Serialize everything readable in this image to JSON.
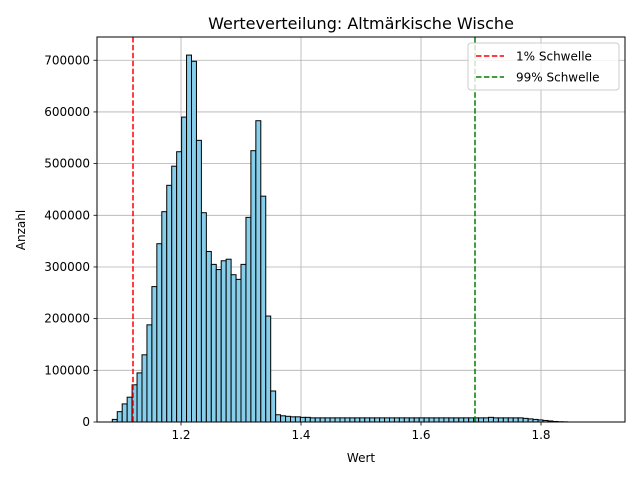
{
  "chart_data": {
    "type": "bar",
    "title": "Werteverteilung: Altmärkische Wische",
    "xlabel": "Wert",
    "ylabel": "Anzahl",
    "xlim": [
      1.06,
      1.94
    ],
    "ylim": [
      0,
      745000
    ],
    "xticks": [
      1.2,
      1.4,
      1.6,
      1.8
    ],
    "xtick_labels": [
      "1.2",
      "1.4",
      "1.6",
      "1.8"
    ],
    "yticks": [
      0,
      100000,
      200000,
      300000,
      400000,
      500000,
      600000,
      700000
    ],
    "ytick_labels": [
      "0",
      "100000",
      "200000",
      "300000",
      "400000",
      "500000",
      "600000",
      "700000"
    ],
    "grid": true,
    "legend_position": "top-right",
    "bar_color": "#87ceeb",
    "bar_edge_color": "#000000",
    "bin_start": 1.0855,
    "bin_width": 0.00825,
    "values": [
      5000,
      20000,
      35000,
      48000,
      72000,
      95000,
      130000,
      188000,
      262000,
      345000,
      407000,
      458000,
      495000,
      523000,
      590000,
      710000,
      698000,
      545000,
      405000,
      330000,
      305000,
      295000,
      312000,
      315000,
      285000,
      276000,
      305000,
      396000,
      525000,
      583000,
      437000,
      205000,
      60000,
      14000,
      12000,
      11000,
      10000,
      10000,
      9000,
      9000,
      8000,
      8000,
      8000,
      8000,
      8000,
      8000,
      8000,
      8000,
      8000,
      8000,
      8000,
      8000,
      8000,
      8000,
      8000,
      8000,
      8000,
      8000,
      8000,
      8000,
      8000,
      8000,
      8000,
      8000,
      8000,
      8000,
      8000,
      8000,
      8000,
      8000,
      8000,
      8000,
      8000,
      8000,
      8000,
      8000,
      9000,
      8000,
      8000,
      8000,
      8000,
      8000,
      8000,
      7000,
      6000,
      5000,
      4000,
      3000,
      2000,
      1000,
      500,
      300
    ],
    "threshold_lines": [
      {
        "label": "1% Schwelle",
        "x": 1.12,
        "color": "#ff0000"
      },
      {
        "label": "99% Schwelle",
        "x": 1.69,
        "color": "#008000"
      }
    ]
  }
}
